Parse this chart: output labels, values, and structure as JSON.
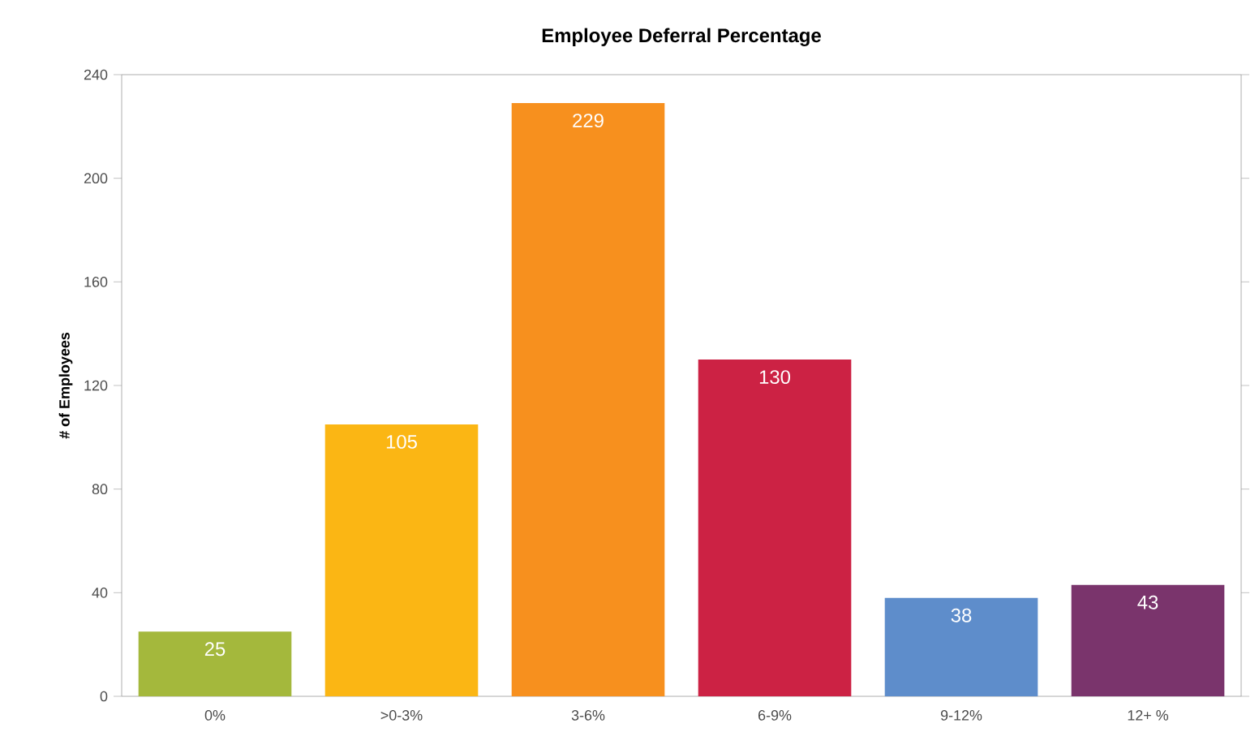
{
  "chart_data": {
    "type": "bar",
    "title": "Employee Deferral Percentage",
    "ylabel": "# of Employees",
    "categories": [
      "0%",
      ">0-3%",
      "3-6%",
      "6-9%",
      "9-12%",
      "12+ %"
    ],
    "values": [
      25,
      105,
      229,
      130,
      38,
      43
    ],
    "colors": [
      "#a4b83c",
      "#fbb614",
      "#f7901e",
      "#cc2244",
      "#5e8dcb",
      "#7a346c"
    ],
    "ylim": [
      0,
      240
    ],
    "yticks": [
      0,
      40,
      80,
      120,
      160,
      200,
      240
    ],
    "data_labels": true,
    "grid": false
  }
}
